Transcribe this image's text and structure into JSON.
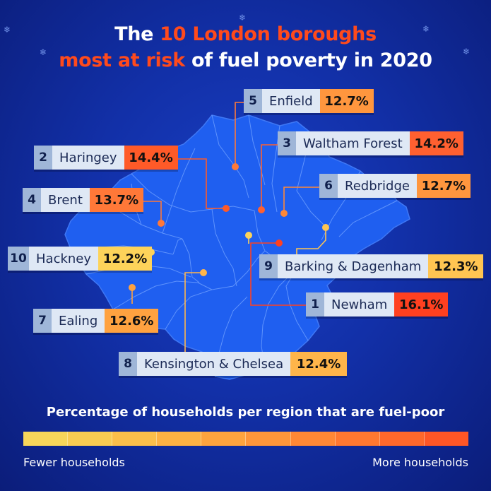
{
  "title": {
    "part1": "The ",
    "highlight1": "10 London boroughs",
    "highlight2": "most at risk",
    "part2": " of fuel poverty in 2020"
  },
  "colors": {
    "background": "#1230a8",
    "map_fill": "#1f5ff0",
    "map_borders": "#6fa0ff",
    "highlight": "#ff4a1c",
    "scale_low": "#f7d65a",
    "scale_high": "#ff4020"
  },
  "boroughs": [
    {
      "rank": "1",
      "name": "Newham",
      "value": "16.1%",
      "color": "#ff4020"
    },
    {
      "rank": "2",
      "name": "Haringey",
      "value": "14.4%",
      "color": "#ff5a28"
    },
    {
      "rank": "3",
      "name": "Waltham Forest",
      "value": "14.2%",
      "color": "#ff6030"
    },
    {
      "rank": "4",
      "name": "Brent",
      "value": "13.7%",
      "color": "#ff7838"
    },
    {
      "rank": "5",
      "name": "Enfield",
      "value": "12.7%",
      "color": "#ff963e"
    },
    {
      "rank": "6",
      "name": "Redbridge",
      "value": "12.7%",
      "color": "#ff963e"
    },
    {
      "rank": "7",
      "name": "Ealing",
      "value": "12.6%",
      "color": "#ffa240"
    },
    {
      "rank": "8",
      "name": "Kensington & Chelsea",
      "value": "12.4%",
      "color": "#ffb54a"
    },
    {
      "rank": "9",
      "name": "Barking & Dagenham",
      "value": "12.3%",
      "color": "#ffc552"
    },
    {
      "rank": "10",
      "name": "Hackney",
      "value": "12.2%",
      "color": "#fdd35a"
    }
  ],
  "legend": {
    "title": "Percentage of households per region that are fuel-poor",
    "low_label": "Fewer households",
    "high_label": "More households",
    "scale_colors": [
      "#f7d65a",
      "#f9cc52",
      "#fbbf4a",
      "#fdb243",
      "#fea43e",
      "#fe963a",
      "#ff8835",
      "#ff7830",
      "#ff682b",
      "#ff5626"
    ]
  },
  "icons": [
    "snowflake-icon",
    "snowflake-icon",
    "snowflake-icon",
    "snowflake-icon",
    "snowflake-icon"
  ]
}
